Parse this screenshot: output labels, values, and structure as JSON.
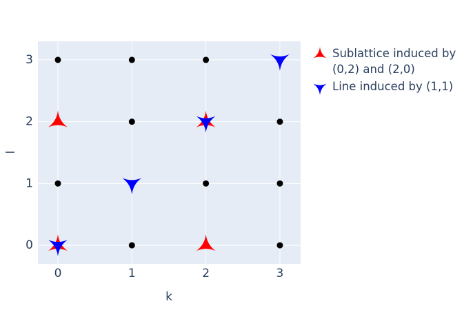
{
  "chart_data": {
    "type": "scatter",
    "x_label": "k",
    "y_label": "l",
    "xlim": [
      -0.27,
      3.28
    ],
    "ylim": [
      -0.3,
      3.3
    ],
    "xticks": [
      0,
      1,
      2,
      3
    ],
    "yticks": [
      0,
      1,
      2,
      3
    ],
    "grid": true,
    "legend": "right",
    "series": [
      {
        "color": "#000000",
        "marker": "circle",
        "x": [
          0,
          1,
          2,
          3,
          0,
          1,
          2,
          3,
          0,
          1,
          2,
          3,
          0,
          1,
          2,
          3
        ],
        "values": [
          0,
          0,
          0,
          0,
          1,
          1,
          1,
          1,
          2,
          2,
          2,
          2,
          3,
          3,
          3,
          3
        ]
      },
      {
        "name": "Sublattice induced by (0,2) and (2,0)",
        "color": "#ff0000",
        "marker": "star-triangle-up",
        "x": [
          0,
          0,
          2,
          2
        ],
        "values": [
          2,
          0,
          0,
          2
        ]
      },
      {
        "name": "Line induced by (1,1)",
        "color": "#0000ff",
        "marker": "star-triangle-down",
        "x": [
          0,
          1,
          2,
          3
        ],
        "values": [
          0,
          1,
          2,
          3
        ]
      }
    ]
  }
}
